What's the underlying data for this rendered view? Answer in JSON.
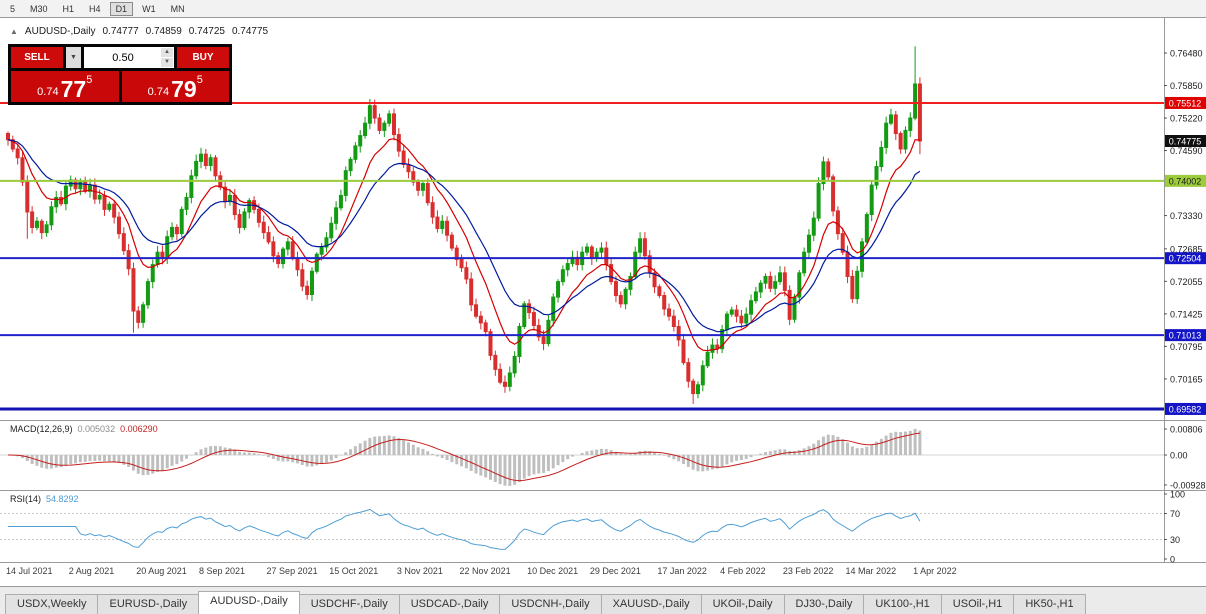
{
  "toolbar": {
    "timeframes": [
      "5",
      "M30",
      "H1",
      "H4",
      "D1",
      "W1",
      "MN"
    ],
    "active": "D1"
  },
  "icons": {
    "symbol_chart": "▲",
    "dropdown_arrow": "▼",
    "spinner_up": "▲",
    "spinner_down": "▼"
  },
  "chart_header": {
    "symbol": "AUDUSD-,Daily",
    "open": "0.74777",
    "high": "0.74859",
    "low": "0.74725",
    "close": "0.74775"
  },
  "trade_panel": {
    "sell_label": "SELL",
    "buy_label": "BUY",
    "volume": "0.50",
    "sell": {
      "small": "0.74",
      "big": "77",
      "sup": "5"
    },
    "buy": {
      "small": "0.74",
      "big": "79",
      "sup": "5"
    }
  },
  "chart_data": {
    "type": "candlestick",
    "title": "AUDUSD-,Daily",
    "ylim": [
      0.6937,
      0.7714
    ],
    "grid": false,
    "price_axis_labels": [
      {
        "t": "0.76480",
        "v": 0.7648
      },
      {
        "t": "0.75850",
        "v": 0.7585
      },
      {
        "t": "0.75220",
        "v": 0.7522
      },
      {
        "t": "0.74590",
        "v": 0.7459
      },
      {
        "t": "0.73330",
        "v": 0.7333
      },
      {
        "t": "0.72685",
        "v": 0.72685
      },
      {
        "t": "0.72055",
        "v": 0.72055
      },
      {
        "t": "0.71425",
        "v": 0.71425
      },
      {
        "t": "0.70795",
        "v": 0.70795
      },
      {
        "t": "0.70165",
        "v": 0.70165
      }
    ],
    "hlines": [
      {
        "value": 0.75512,
        "label": "0.75512",
        "color": "#f02020",
        "width": 2,
        "badge": "#e00000",
        "text": "#ffffff"
      },
      {
        "value": 0.74002,
        "label": "0.74002",
        "color": "#9ccb3b",
        "width": 2,
        "badge": "#9ccb3b",
        "text": "#1a1a1a"
      },
      {
        "value": 0.72504,
        "label": "0.72504",
        "color": "#2323cc",
        "width": 2,
        "badge": "#1515c8",
        "text": "#ffffff"
      },
      {
        "value": 0.71013,
        "label": "0.71013",
        "color": "#2323cc",
        "width": 2,
        "badge": "#1515c8",
        "text": "#ffffff"
      },
      {
        "value": 0.69582,
        "label": "0.69582",
        "color": "#1212b2",
        "width": 3,
        "badge": "#1515c8",
        "text": "#ffffff"
      }
    ],
    "current_price": {
      "value": 0.74775,
      "label": "0.74775",
      "badge": "#101010",
      "text": "#ffffff"
    },
    "candles": {
      "closes": [
        0.748,
        0.7462,
        0.7445,
        0.7398,
        0.734,
        0.731,
        0.7322,
        0.73,
        0.7315,
        0.735,
        0.7368,
        0.7356,
        0.739,
        0.7402,
        0.7385,
        0.7398,
        0.738,
        0.7392,
        0.7365,
        0.7372,
        0.7345,
        0.7355,
        0.733,
        0.7298,
        0.7265,
        0.723,
        0.7148,
        0.7126,
        0.716,
        0.7205,
        0.7238,
        0.7262,
        0.725,
        0.7292,
        0.731,
        0.7298,
        0.7345,
        0.7368,
        0.741,
        0.7438,
        0.7452,
        0.743,
        0.7445,
        0.741,
        0.7388,
        0.736,
        0.7372,
        0.7335,
        0.731,
        0.734,
        0.7362,
        0.7345,
        0.732,
        0.73,
        0.7282,
        0.7255,
        0.724,
        0.7268,
        0.7282,
        0.725,
        0.7228,
        0.7196,
        0.718,
        0.7225,
        0.7258,
        0.7272,
        0.729,
        0.7318,
        0.7348,
        0.7372,
        0.742,
        0.7442,
        0.7468,
        0.7488,
        0.7512,
        0.7546,
        0.7522,
        0.7498,
        0.7512,
        0.753,
        0.749,
        0.7458,
        0.7432,
        0.7418,
        0.7398,
        0.7382,
        0.7395,
        0.7358,
        0.733,
        0.7308,
        0.7322,
        0.7295,
        0.727,
        0.7248,
        0.7232,
        0.721,
        0.716,
        0.7138,
        0.7125,
        0.7108,
        0.7062,
        0.7035,
        0.701,
        0.7002,
        0.7028,
        0.706,
        0.7118,
        0.7162,
        0.7145,
        0.712,
        0.7098,
        0.7085,
        0.713,
        0.7175,
        0.7205,
        0.7228,
        0.724,
        0.7252,
        0.7238,
        0.7262,
        0.7272,
        0.725,
        0.7262,
        0.727,
        0.7238,
        0.7205,
        0.7178,
        0.7162,
        0.719,
        0.7215,
        0.7262,
        0.7288,
        0.7255,
        0.7222,
        0.7195,
        0.7178,
        0.7152,
        0.7138,
        0.7118,
        0.7092,
        0.7048,
        0.7012,
        0.6988,
        0.7005,
        0.7042,
        0.7068,
        0.7082,
        0.7075,
        0.7112,
        0.7142,
        0.715,
        0.7138,
        0.7125,
        0.7142,
        0.7168,
        0.7185,
        0.7202,
        0.7215,
        0.7192,
        0.7205,
        0.7222,
        0.7188,
        0.7132,
        0.7175,
        0.7222,
        0.7262,
        0.7295,
        0.7328,
        0.7395,
        0.7437,
        0.7408,
        0.7342,
        0.7298,
        0.7262,
        0.7215,
        0.7172,
        0.7225,
        0.7282,
        0.7335,
        0.7392,
        0.7428,
        0.7465,
        0.7512,
        0.7528,
        0.7492,
        0.7462,
        0.7498,
        0.7522,
        0.7588,
        0.74775
      ],
      "special_highs": {
        "13": 0.741,
        "75": 0.7555,
        "79": 0.7537,
        "169": 0.7441,
        "183": 0.754,
        "188": 0.7661
      },
      "special_lows": {
        "4": 0.7288,
        "26": 0.7106,
        "62": 0.717,
        "103": 0.6993,
        "111": 0.7082,
        "142": 0.6968,
        "175": 0.7165,
        "189": 0.7452
      },
      "up_color": "#139b13",
      "down_color": "#d82e2e"
    },
    "moving_averages": [
      {
        "period": 10,
        "color": "#d40000"
      },
      {
        "period": 20,
        "color": "#001a9e"
      }
    ],
    "dates": [
      {
        "label": "14 Jul 2021",
        "bar": 0
      },
      {
        "label": "2 Aug 2021",
        "bar": 13
      },
      {
        "label": "20 Aug 2021",
        "bar": 27
      },
      {
        "label": "8 Sep 2021",
        "bar": 40
      },
      {
        "label": "27 Sep 2021",
        "bar": 54
      },
      {
        "label": "15 Oct 2021",
        "bar": 67
      },
      {
        "label": "3 Nov 2021",
        "bar": 81
      },
      {
        "label": "22 Nov 2021",
        "bar": 94
      },
      {
        "label": "10 Dec 2021",
        "bar": 108
      },
      {
        "label": "29 Dec 2021",
        "bar": 121
      },
      {
        "label": "17 Jan 2022",
        "bar": 135
      },
      {
        "label": "4 Feb 2022",
        "bar": 148
      },
      {
        "label": "23 Feb 2022",
        "bar": 161
      },
      {
        "label": "14 Mar 2022",
        "bar": 174
      },
      {
        "label": "1 Apr 2022",
        "bar": 188
      }
    ],
    "macd": {
      "label": "MACD(12,26,9)",
      "v1": "0.005032",
      "v2": "0.006290",
      "fast": 12,
      "slow": 26,
      "signal": 9,
      "axis": [
        {
          "t": "0.00806",
          "v": 0.00806
        },
        {
          "t": "0.00",
          "v": 0
        },
        {
          "t": "-0.00928",
          "v": -0.00928
        }
      ],
      "hist_color": "#bfbfbf",
      "signal_color": "#c61f1f"
    },
    "rsi": {
      "label": "RSI(14)",
      "value_text": "54.8292",
      "period": 14,
      "axis": [
        {
          "t": "100",
          "v": 100
        },
        {
          "t": "70",
          "v": 70
        },
        {
          "t": "30",
          "v": 30
        },
        {
          "t": "0",
          "v": 0
        }
      ],
      "levels": [
        70,
        30
      ],
      "line_color": "#4f9fd6"
    }
  },
  "tabs": {
    "items": [
      "USDX,Weekly",
      "EURUSD-,Daily",
      "AUDUSD-,Daily",
      "USDCHF-,Daily",
      "USDCAD-,Daily",
      "USDCNH-,Daily",
      "XAUUSD-,Daily",
      "UKOil-,Daily",
      "DJ30-,Daily",
      "UK100-,H1",
      "USOil-,H1",
      "HK50-,H1"
    ],
    "active": "AUDUSD-,Daily"
  }
}
